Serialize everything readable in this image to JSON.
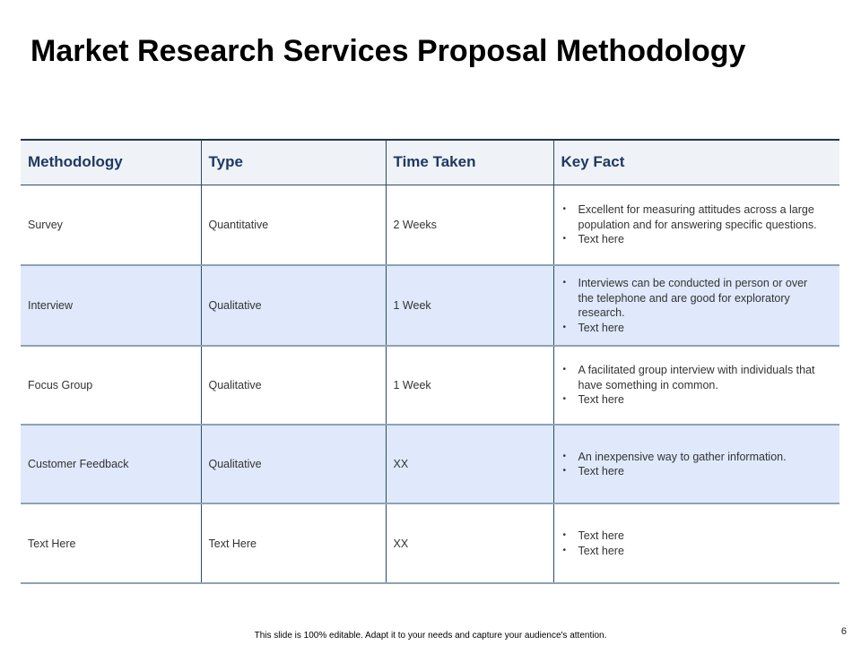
{
  "title": "Market Research Services Proposal Methodology",
  "table": {
    "headers": [
      "Methodology",
      "Type",
      "Time Taken",
      "Key Fact"
    ],
    "rows": [
      {
        "methodology": "Survey",
        "type": "Quantitative",
        "time": "2 Weeks",
        "facts": [
          "Excellent for measuring attitudes across a large population and for answering specific questions.",
          "Text here"
        ]
      },
      {
        "methodology": "Interview",
        "type": "Qualitative",
        "time": "1 Week",
        "facts": [
          "Interviews can be conducted in person or over the telephone and are good for exploratory research.",
          "Text here"
        ]
      },
      {
        "methodology": "Focus Group",
        "type": "Qualitative",
        "time": "1 Week",
        "facts": [
          "A facilitated group interview with individuals that have something in common.",
          "Text here"
        ]
      },
      {
        "methodology": "Customer Feedback",
        "type": "Qualitative",
        "time": "XX",
        "facts": [
          "An inexpensive way to gather information.",
          "Text here"
        ]
      },
      {
        "methodology": "Text Here",
        "type": "Text Here",
        "time": "XX",
        "facts": [
          "Text here",
          "Text here"
        ]
      }
    ]
  },
  "footer": "This slide is 100% editable. Adapt it to your needs and capture your audience's attention.",
  "page_number": "6",
  "colors": {
    "header_text": "#1f3864",
    "header_bg": "#eff3f7",
    "alt_row_bg": "#dfe9fb"
  }
}
